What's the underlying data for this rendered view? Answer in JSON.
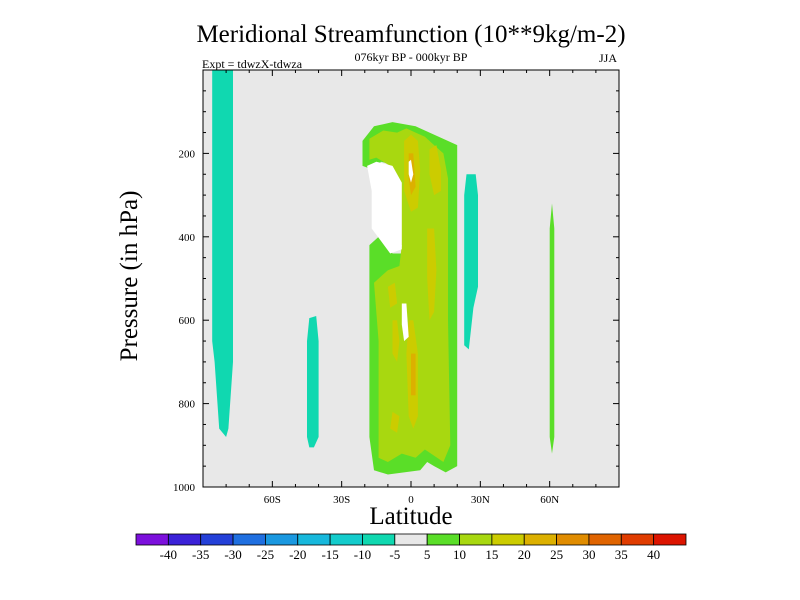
{
  "chart_data": {
    "type": "heatmap",
    "title": "Meridional Streamfunction (10**9kg/m-2)",
    "subtitle": "076kyr BP - 000kyr BP",
    "left_annotation": "Expt = tdwzX-tdwza",
    "season": "JJA",
    "xlabel": "Latitude",
    "ylabel": "Pressure (in hPa)",
    "xlim": [
      -90,
      90
    ],
    "ylim": [
      1000,
      0
    ],
    "x_ticks": [
      {
        "value": -60,
        "label": "60S"
      },
      {
        "value": -30,
        "label": "30S"
      },
      {
        "value": 0,
        "label": "0"
      },
      {
        "value": 30,
        "label": "30N"
      },
      {
        "value": 60,
        "label": "60N"
      }
    ],
    "y_ticks": [
      {
        "value": 200,
        "label": "200"
      },
      {
        "value": 400,
        "label": "400"
      },
      {
        "value": 600,
        "label": "600"
      },
      {
        "value": 800,
        "label": "800"
      },
      {
        "value": 1000,
        "label": "1000"
      }
    ],
    "colorbar": {
      "labels": [
        "-40",
        "-35",
        "-30",
        "-25",
        "-20",
        "-15",
        "-10",
        "-5",
        "5",
        "10",
        "15",
        "20",
        "25",
        "30",
        "35",
        "40"
      ],
      "colors": [
        "#7c10dc",
        "#3b22d8",
        "#2440d8",
        "#1f6fe0",
        "#1a98e0",
        "#17b8dc",
        "#14cccc",
        "#10d8b0",
        "#e8e8e8",
        "#5ade28",
        "#a8d810",
        "#cccc00",
        "#dcb000",
        "#e08c00",
        "#e06400",
        "#e03c00",
        "#dc1400"
      ]
    },
    "background_color": "#e8e8e8",
    "contour_regions": [
      {
        "level": "-10 to -5",
        "color": "#10d8b0",
        "points": [
          [
            -86,
            0
          ],
          [
            -77,
            0
          ],
          [
            -77,
            700
          ],
          [
            -79,
            860
          ],
          [
            -80,
            880
          ],
          [
            -83,
            860
          ],
          [
            -85,
            700
          ],
          [
            -86,
            650
          ]
        ]
      },
      {
        "level": "-10 to -5",
        "color": "#10d8b0",
        "points": [
          [
            -44,
            595
          ],
          [
            -41,
            590
          ],
          [
            -40,
            650
          ],
          [
            -40,
            880
          ],
          [
            -42,
            905
          ],
          [
            -44,
            905
          ],
          [
            -45,
            880
          ],
          [
            -45,
            650
          ]
        ]
      },
      {
        "level": "-10 to -5",
        "color": "#10d8b0",
        "points": [
          [
            24,
            250
          ],
          [
            28,
            250
          ],
          [
            29,
            300
          ],
          [
            29,
            520
          ],
          [
            27,
            570
          ],
          [
            25,
            670
          ],
          [
            23,
            660
          ],
          [
            23,
            300
          ]
        ]
      },
      {
        "level": "5 to 10",
        "color": "#5ade28",
        "points": [
          [
            -21,
            170
          ],
          [
            -16,
            135
          ],
          [
            -8,
            125
          ],
          [
            2,
            135
          ],
          [
            12,
            160
          ],
          [
            20,
            180
          ],
          [
            20,
            950
          ],
          [
            15,
            965
          ],
          [
            10,
            950
          ],
          [
            7,
            940
          ],
          [
            4,
            960
          ],
          [
            -10,
            970
          ],
          [
            -16,
            960
          ],
          [
            -18,
            880
          ],
          [
            -18,
            420
          ],
          [
            -12,
            390
          ],
          [
            -8,
            440
          ],
          [
            -3,
            440
          ],
          [
            -6,
            230
          ],
          [
            -13,
            220
          ],
          [
            -16,
            240
          ],
          [
            -21,
            230
          ]
        ]
      },
      {
        "level": "5 to 10",
        "color": "#5ade28",
        "points": [
          [
            61,
            320
          ],
          [
            62,
            380
          ],
          [
            62,
            880
          ],
          [
            61,
            920
          ],
          [
            60,
            880
          ],
          [
            60,
            380
          ]
        ]
      },
      {
        "level": "10 to 15",
        "color": "#a8d810",
        "points": [
          [
            -18,
            165
          ],
          [
            -12,
            145
          ],
          [
            -6,
            150
          ],
          [
            -2,
            140
          ],
          [
            2,
            150
          ],
          [
            6,
            160
          ],
          [
            10,
            180
          ],
          [
            14,
            200
          ],
          [
            16,
            260
          ],
          [
            16,
            600
          ],
          [
            17,
            900
          ],
          [
            14,
            940
          ],
          [
            6,
            910
          ],
          [
            2,
            930
          ],
          [
            -4,
            920
          ],
          [
            -10,
            940
          ],
          [
            -14,
            930
          ],
          [
            -14,
            650
          ],
          [
            -16,
            510
          ],
          [
            -10,
            480
          ],
          [
            -5,
            470
          ],
          [
            -4,
            420
          ],
          [
            -9,
            420
          ],
          [
            -12,
            400
          ],
          [
            -14,
            360
          ],
          [
            -9,
            230
          ],
          [
            -15,
            210
          ],
          [
            -18,
            215
          ]
        ]
      },
      {
        "level": "15 to 20",
        "color": "#cccc00",
        "points": [
          [
            -3,
            170
          ],
          [
            0,
            155
          ],
          [
            3,
            170
          ],
          [
            4,
            240
          ],
          [
            3,
            330
          ],
          [
            0,
            340
          ],
          [
            -3,
            290
          ]
        ]
      },
      {
        "level": "15 to 20",
        "color": "#cccc00",
        "points": [
          [
            8,
            190
          ],
          [
            11,
            180
          ],
          [
            13,
            240
          ],
          [
            13,
            290
          ],
          [
            10,
            300
          ],
          [
            8,
            250
          ]
        ]
      },
      {
        "level": "15 to 20",
        "color": "#cccc00",
        "points": [
          [
            7,
            380
          ],
          [
            10,
            380
          ],
          [
            11,
            480
          ],
          [
            10,
            580
          ],
          [
            8,
            600
          ],
          [
            7,
            500
          ]
        ]
      },
      {
        "level": "15 to 20",
        "color": "#cccc00",
        "points": [
          [
            -1,
            600
          ],
          [
            1,
            600
          ],
          [
            3,
            680
          ],
          [
            3,
            830
          ],
          [
            1,
            860
          ],
          [
            -1,
            830
          ],
          [
            -2,
            680
          ]
        ]
      },
      {
        "level": "15 to 20",
        "color": "#cccc00",
        "points": [
          [
            -8,
            600
          ],
          [
            -6,
            600
          ],
          [
            -5,
            650
          ],
          [
            -6,
            700
          ],
          [
            -8,
            680
          ]
        ]
      },
      {
        "level": "15 to 20",
        "color": "#cccc00",
        "points": [
          [
            -10,
            520
          ],
          [
            -7,
            510
          ],
          [
            -6,
            560
          ],
          [
            -9,
            570
          ]
        ]
      },
      {
        "level": "15 to 20",
        "color": "#cccc00",
        "points": [
          [
            -8,
            820
          ],
          [
            -5,
            830
          ],
          [
            -6,
            870
          ],
          [
            -9,
            860
          ]
        ]
      },
      {
        "level": "15 to 20",
        "color": "#cccc00",
        "points": [
          [
            -10,
            360
          ],
          [
            -6,
            350
          ],
          [
            -5,
            390
          ],
          [
            -9,
            400
          ]
        ]
      },
      {
        "level": "20 to 25",
        "color": "#dcb000",
        "points": [
          [
            -1,
            200
          ],
          [
            1,
            200
          ],
          [
            2,
            280
          ],
          [
            0,
            300
          ],
          [
            -1,
            260
          ]
        ]
      },
      {
        "level": "20 to 25",
        "color": "#dcb000",
        "points": [
          [
            0,
            680
          ],
          [
            2,
            680
          ],
          [
            2,
            780
          ],
          [
            0,
            780
          ]
        ]
      },
      {
        "level": "-5 to 5",
        "color": "#ffffff",
        "points": [
          [
            -19,
            230
          ],
          [
            -15,
            220
          ],
          [
            -8,
            230
          ],
          [
            -4,
            270
          ],
          [
            -4,
            430
          ],
          [
            -9,
            440
          ],
          [
            -13,
            410
          ],
          [
            -17,
            380
          ],
          [
            -17,
            290
          ]
        ]
      },
      {
        "level": "-5 to 5",
        "color": "#ffffff",
        "points": [
          [
            -4,
            560
          ],
          [
            -2,
            560
          ],
          [
            -1,
            640
          ],
          [
            -3,
            650
          ],
          [
            -4,
            610
          ]
        ]
      },
      {
        "level": "-5 to 5",
        "color": "#ffffff",
        "points": [
          [
            -1,
            220
          ],
          [
            0,
            215
          ],
          [
            1,
            250
          ],
          [
            0,
            270
          ],
          [
            -1,
            250
          ]
        ]
      }
    ]
  }
}
